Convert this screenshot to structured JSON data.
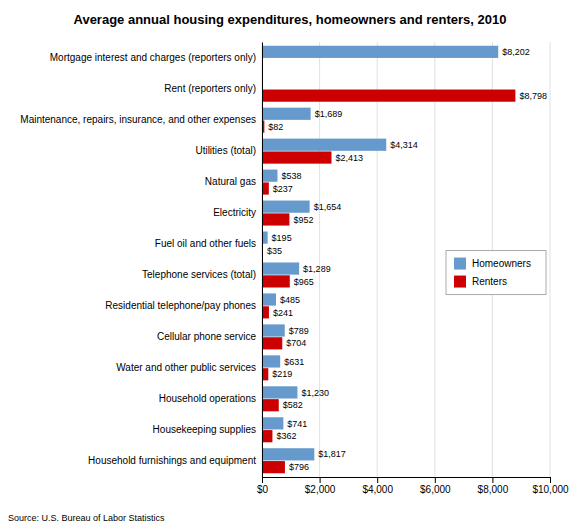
{
  "chart_data": {
    "type": "bar",
    "orientation": "horizontal",
    "title": "Average annual housing expenditures, homeowners and renters, 2010",
    "source": "Source: U.S. Bureau of Labor Statistics",
    "categories": [
      "Mortgage interest and charges (reporters only)",
      "Rent (reporters only)",
      "Maintenance, repairs, insurance, and other expenses",
      "Utilities (total)",
      "Natural gas",
      "Electricity",
      "Fuel oil and other fuels",
      "Telephone services (total)",
      "Residential telephone/pay phones",
      "Cellular phone service",
      "Water and other public services",
      "Household operations",
      "Housekeeping supplies",
      "Household furnishings and equipment"
    ],
    "series": [
      {
        "name": "Homeowners",
        "color": "#6699CC",
        "values": [
          8202,
          null,
          1689,
          4314,
          538,
          1654,
          195,
          1289,
          485,
          789,
          631,
          1230,
          741,
          1817
        ],
        "value_labels": [
          "$8,202",
          null,
          "$1,689",
          "$4,314",
          "$538",
          "$1,654",
          "$195",
          "$1,289",
          "$485",
          "$789",
          "$631",
          "$1,230",
          "$741",
          "$1,817"
        ]
      },
      {
        "name": "Renters",
        "color": "#CC0000",
        "values": [
          null,
          8798,
          82,
          2413,
          237,
          952,
          35,
          965,
          241,
          704,
          219,
          582,
          362,
          796
        ],
        "value_labels": [
          null,
          "$8,798",
          "$82",
          "$2,413",
          "$237",
          "$952",
          "$35",
          "$965",
          "$241",
          "$704",
          "$219",
          "$582",
          "$362",
          "$796"
        ]
      }
    ],
    "xlim": [
      0,
      10000
    ],
    "xticks": [
      {
        "value": 0,
        "label": "$0"
      },
      {
        "value": 2000,
        "label": "$2,000"
      },
      {
        "value": 4000,
        "label": "$4,000"
      },
      {
        "value": 6000,
        "label": "$6,000"
      },
      {
        "value": 8000,
        "label": "$8,000"
      },
      {
        "value": 10000,
        "label": "$10,000"
      }
    ],
    "grid": true,
    "legend": "right",
    "data_labels": true
  }
}
